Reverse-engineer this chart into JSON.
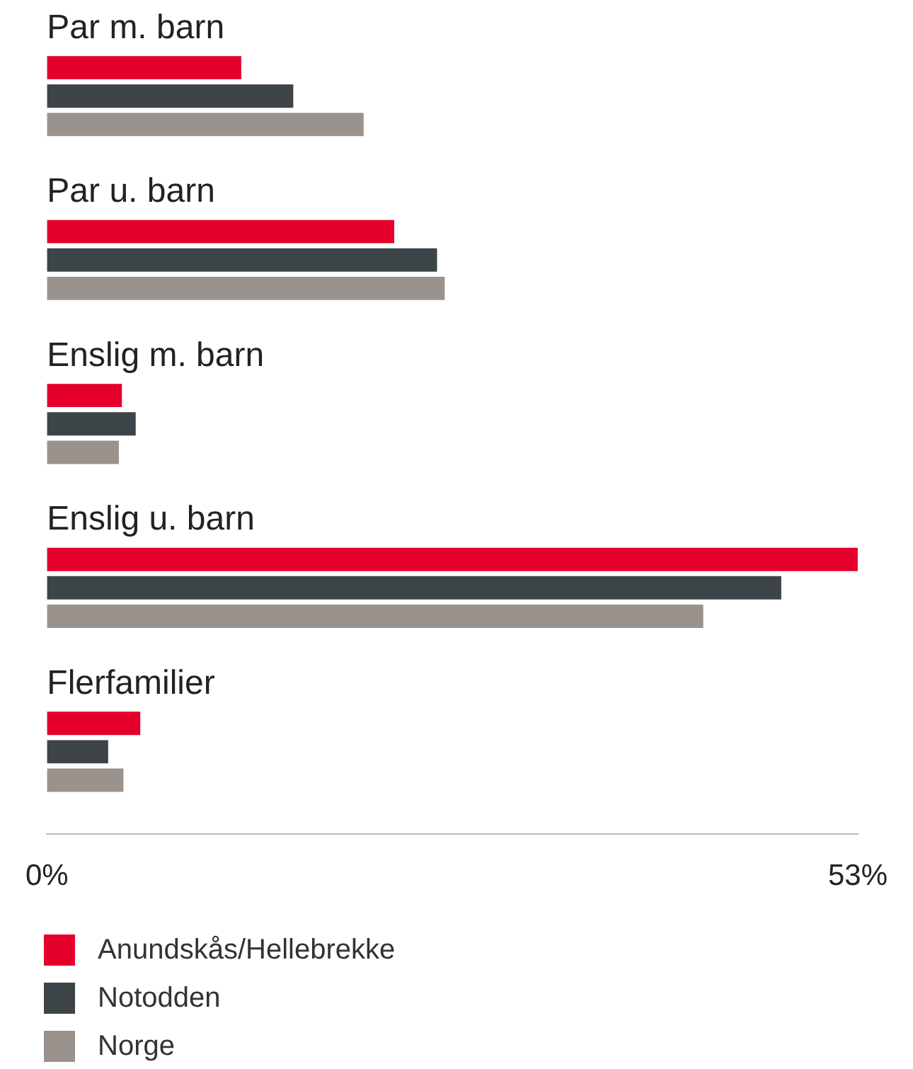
{
  "chart_data": {
    "type": "bar",
    "orientation": "horizontal",
    "categories": [
      "Par m. barn",
      "Par u. barn",
      "Enslig m. barn",
      "Enslig u. barn",
      "Flerfamilier"
    ],
    "series": [
      {
        "name": "Anundskås/Hellebrekke",
        "color": "#e4002b",
        "values": [
          12.7,
          22.7,
          4.9,
          53,
          6.1
        ]
      },
      {
        "name": "Notodden",
        "color": "#3d4447",
        "values": [
          16.1,
          25.5,
          5.8,
          48,
          4
        ]
      },
      {
        "name": "Norge",
        "color": "#9a928d",
        "values": [
          20.7,
          26,
          4.7,
          42.9,
          5
        ]
      }
    ],
    "xlim": [
      0,
      53
    ],
    "xticks": [
      {
        "value": 0,
        "label": "0%"
      },
      {
        "value": 53,
        "label": "53%"
      }
    ],
    "grid": false,
    "legend": "bottom"
  }
}
